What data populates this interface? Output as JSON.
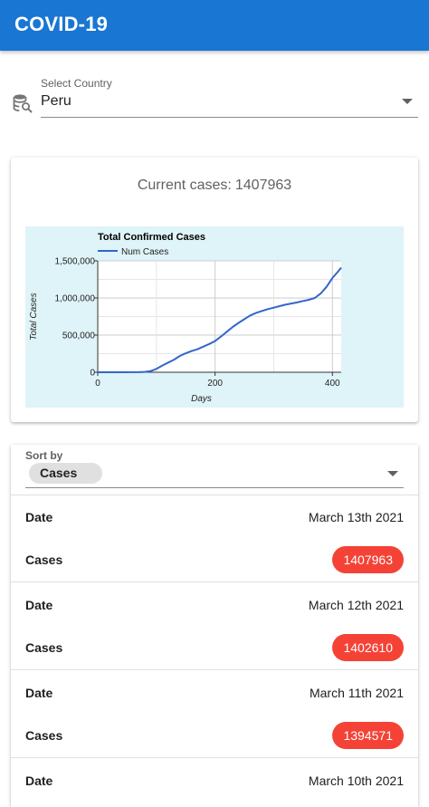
{
  "app": {
    "title": "COVID-19"
  },
  "country": {
    "label": "Select Country",
    "value": "Peru"
  },
  "current_cases": {
    "label": "Current cases:",
    "value": "1407963"
  },
  "chart_data": {
    "type": "line",
    "title": "Total Confirmed Cases",
    "xlabel": "Days",
    "ylabel": "Total Cases",
    "xlim": [
      0,
      415
    ],
    "ylim": [
      0,
      1500000
    ],
    "x_ticks": [
      "0",
      "200",
      "400"
    ],
    "y_ticks": [
      "0",
      "500,000",
      "1,000,000",
      "1,500,000"
    ],
    "legend": "top-left",
    "grid": true,
    "background": "#dff4f8",
    "series": [
      {
        "name": "Num Cases",
        "color": "#3366cc",
        "x": [
          0,
          40,
          70,
          80,
          90,
          100,
          110,
          120,
          130,
          140,
          150,
          160,
          170,
          180,
          190,
          200,
          210,
          220,
          230,
          240,
          250,
          260,
          270,
          280,
          290,
          300,
          310,
          320,
          330,
          340,
          350,
          360,
          370,
          380,
          390,
          400,
          410,
          415
        ],
        "y": [
          0,
          0,
          1000,
          5000,
          15000,
          45000,
          90000,
          130000,
          170000,
          220000,
          255000,
          285000,
          310000,
          345000,
          380000,
          420000,
          480000,
          545000,
          610000,
          665000,
          715000,
          765000,
          800000,
          825000,
          850000,
          870000,
          890000,
          910000,
          925000,
          940000,
          960000,
          975000,
          1000000,
          1060000,
          1150000,
          1270000,
          1360000,
          1407963
        ]
      }
    ]
  },
  "sort": {
    "label": "Sort by",
    "value": "Cases"
  },
  "records": [
    {
      "date_label": "Date",
      "date": "March 13th 2021",
      "cases_label": "Cases",
      "cases": "1407963"
    },
    {
      "date_label": "Date",
      "date": "March 12th 2021",
      "cases_label": "Cases",
      "cases": "1402610"
    },
    {
      "date_label": "Date",
      "date": "March 11th 2021",
      "cases_label": "Cases",
      "cases": "1394571"
    },
    {
      "date_label": "Date",
      "date": "March 10th 2021",
      "cases_label": "Cases",
      "cases": ""
    }
  ],
  "colors": {
    "appbar": "#1976d2",
    "badge": "#f44336",
    "line": "#3366cc",
    "chart_bg": "#dff4f8"
  },
  "icons": {
    "country_selector": "database-search-icon",
    "dropdown": "chevron-down-icon"
  }
}
